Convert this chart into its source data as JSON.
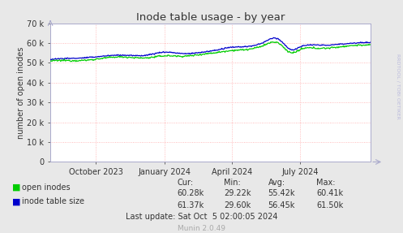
{
  "title": "Inode table usage - by year",
  "ylabel": "number of open inodes",
  "background_color": "#e8e8e8",
  "plot_bg_color": "#ffffff",
  "grid_color": "#ffaaaa",
  "axis_color": "#aaaacc",
  "ylim": [
    0,
    70000
  ],
  "yticks": [
    0,
    10000,
    20000,
    30000,
    40000,
    50000,
    60000,
    70000
  ],
  "xtick_labels": [
    "October 2023",
    "January 2024",
    "April 2024",
    "July 2024"
  ],
  "legend_labels": [
    "open inodes",
    "inode table size"
  ],
  "legend_colors": [
    "#00cc00",
    "#0000cc"
  ],
  "stats_header": [
    "Cur:",
    "Min:",
    "Avg:",
    "Max:"
  ],
  "stats_open_inodes": [
    "60.28k",
    "29.22k",
    "55.42k",
    "60.41k"
  ],
  "stats_inode_table": [
    "61.37k",
    "29.60k",
    "56.45k",
    "61.50k"
  ],
  "last_update": "Last update: Sat Oct  5 02:00:05 2024",
  "munin_version": "Munin 2.0.49",
  "watermark": "RRDTOOL / TOBI OETIKER"
}
